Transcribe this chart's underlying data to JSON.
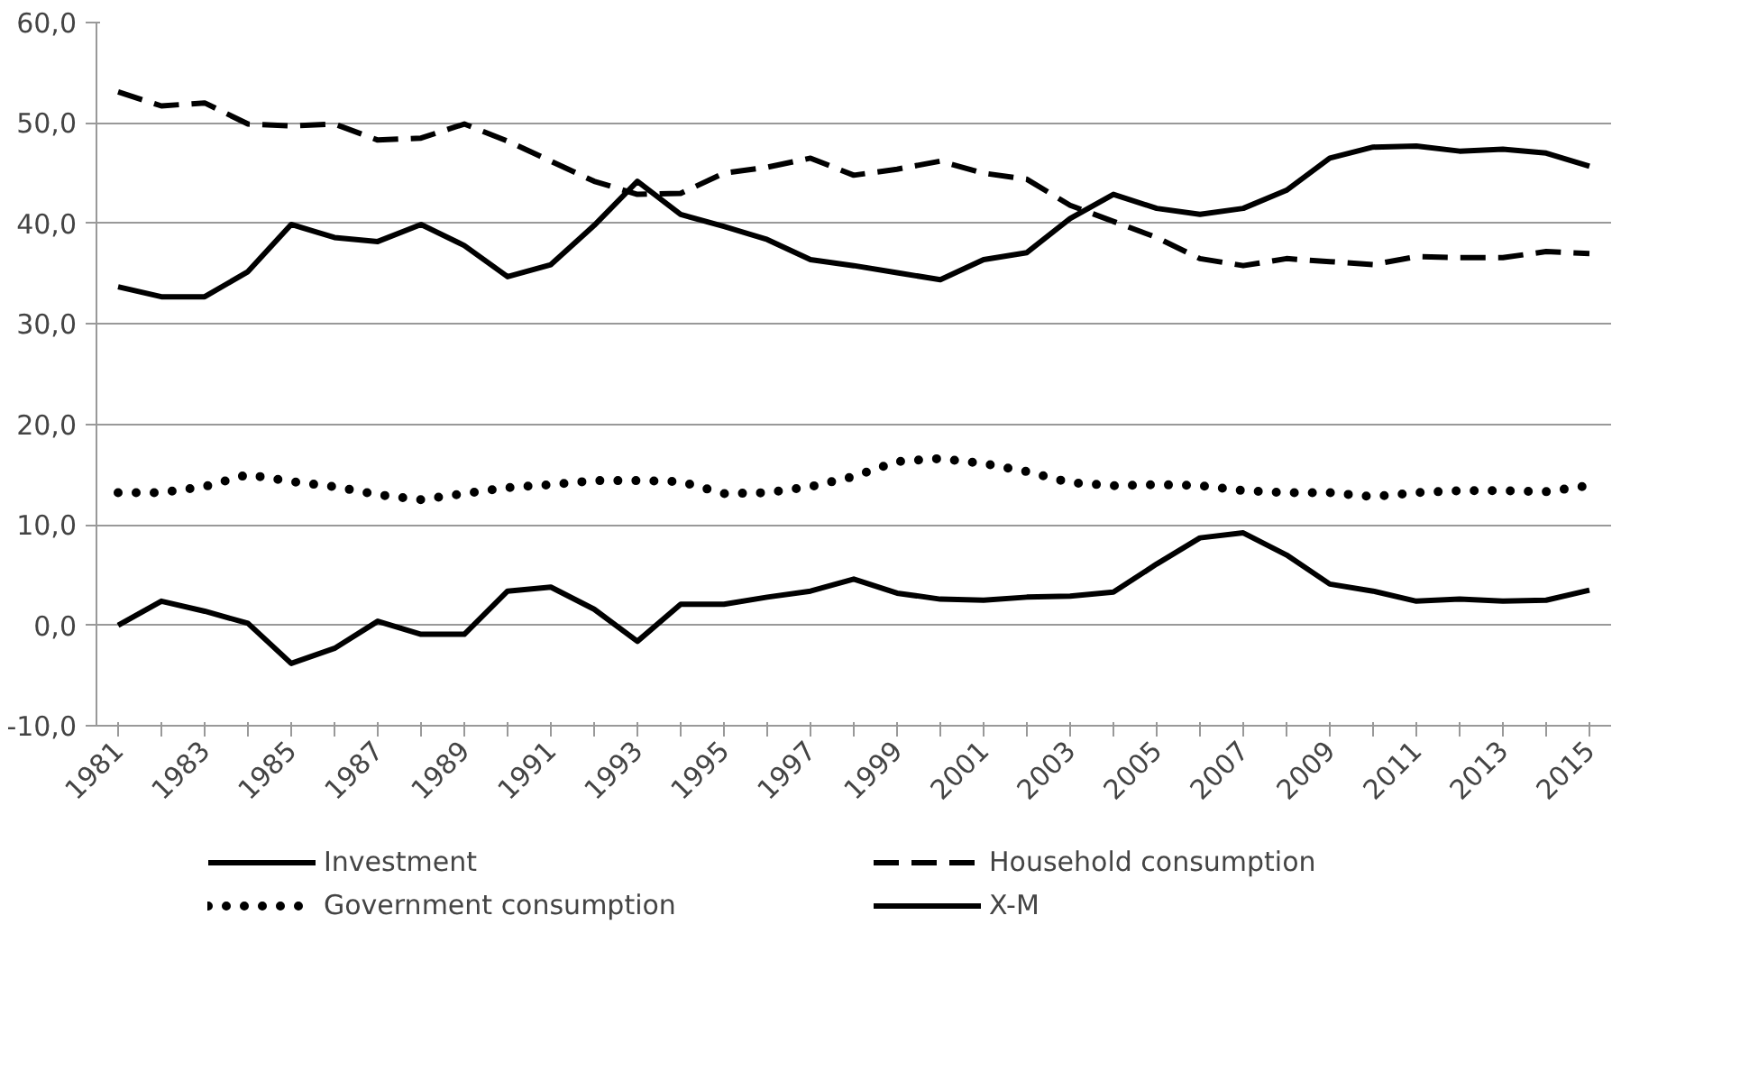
{
  "chart_data": {
    "type": "line",
    "categories": [
      "1981",
      null,
      "1983",
      null,
      "1985",
      null,
      "1987",
      null,
      "1989",
      null,
      "1991",
      null,
      "1993",
      null,
      "1995",
      null,
      "1997",
      null,
      "1999",
      null,
      "2001",
      null,
      "2003",
      null,
      "2005",
      null,
      "2007",
      null,
      "2009",
      null,
      "2011",
      null,
      "2013",
      null,
      "2015"
    ],
    "series": [
      {
        "name": "Investment",
        "color": "#000000",
        "line_style": "solid",
        "values": [
          33.7,
          32.7,
          32.7,
          35.2,
          39.9,
          38.6,
          38.2,
          39.9,
          37.8,
          34.7,
          35.9,
          39.8,
          44.2,
          40.9,
          39.7,
          38.4,
          36.4,
          35.8,
          35.1,
          34.4,
          36.4,
          37.1,
          40.5,
          42.9,
          41.5,
          40.9,
          41.5,
          43.3,
          46.5,
          47.6,
          47.7,
          47.2,
          47.4,
          47.0,
          45.7
        ]
      },
      {
        "name": "Household consumption",
        "color": "#000000",
        "line_style": "dashed",
        "values": [
          53.1,
          51.7,
          52.0,
          49.9,
          49.7,
          49.9,
          48.3,
          48.5,
          49.9,
          48.2,
          46.2,
          44.2,
          42.9,
          43.0,
          45.0,
          45.6,
          46.5,
          44.8,
          45.4,
          46.2,
          45.0,
          44.4,
          41.8,
          40.2,
          38.6,
          36.5,
          35.8,
          36.5,
          36.2,
          35.9,
          36.7,
          36.6,
          36.6,
          37.2,
          37.0
        ]
      },
      {
        "name": "Government consumption",
        "color": "#000000",
        "line_style": "dotted",
        "values": [
          13.2,
          13.2,
          13.8,
          15.0,
          14.3,
          13.8,
          13.0,
          12.5,
          13.1,
          13.7,
          14.0,
          14.4,
          14.4,
          14.3,
          13.1,
          13.2,
          13.8,
          14.8,
          16.3,
          16.6,
          16.1,
          15.3,
          14.2,
          13.9,
          14.0,
          13.9,
          13.4,
          13.2,
          13.2,
          12.8,
          13.2,
          13.4,
          13.4,
          13.3,
          13.9
        ]
      },
      {
        "name": "X-M",
        "color": "#000000",
        "line_style": "solid",
        "values": [
          0.0,
          2.4,
          1.4,
          0.2,
          -3.8,
          -2.3,
          0.4,
          -0.9,
          -0.9,
          3.4,
          3.8,
          1.6,
          -1.6,
          2.1,
          2.1,
          2.8,
          3.4,
          4.6,
          3.2,
          2.6,
          2.5,
          2.8,
          2.9,
          3.3,
          6.1,
          8.7,
          9.2,
          7.0,
          4.1,
          3.4,
          2.4,
          2.6,
          2.4,
          2.5,
          3.5
        ]
      }
    ],
    "ylim": [
      -10,
      60
    ],
    "yticks": [
      {
        "value": -10,
        "label": "-10,0"
      },
      {
        "value": 0,
        "label": "0,0"
      },
      {
        "value": 10,
        "label": "10,0"
      },
      {
        "value": 20,
        "label": "20,0"
      },
      {
        "value": 30,
        "label": "30,0"
      },
      {
        "value": 40,
        "label": "40,0"
      },
      {
        "value": 50,
        "label": "50,0"
      },
      {
        "value": 60,
        "label": "60,0"
      }
    ],
    "grid": "y",
    "legend": "bottom"
  }
}
